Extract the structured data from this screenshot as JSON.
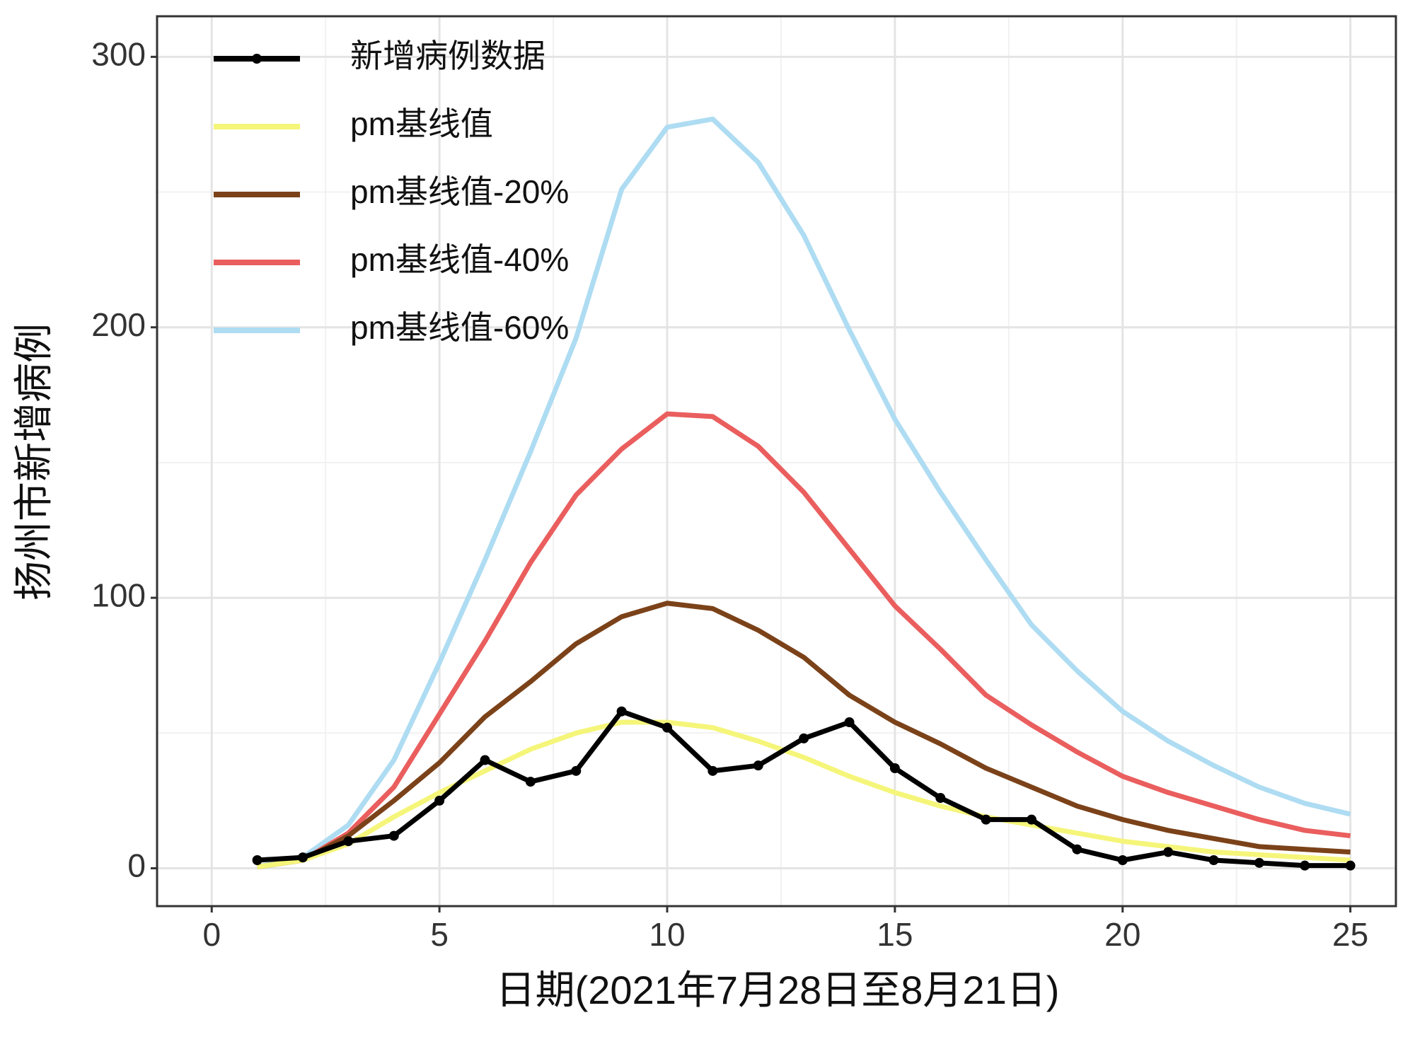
{
  "chart_data": {
    "type": "line",
    "x_label": "日期(2021年7月28日至8月21日)",
    "y_label": "扬州市新增病例",
    "x": [
      1,
      2,
      3,
      4,
      5,
      6,
      7,
      8,
      9,
      10,
      11,
      12,
      13,
      14,
      15,
      16,
      17,
      18,
      19,
      20,
      21,
      22,
      23,
      24,
      25
    ],
    "series": [
      {
        "name": "新增病例数据",
        "color": "#000000",
        "markers": true,
        "values": [
          3,
          4,
          10,
          12,
          25,
          40,
          32,
          36,
          58,
          52,
          36,
          38,
          48,
          54,
          37,
          26,
          18,
          18,
          7,
          3,
          6,
          3,
          2,
          1,
          1
        ]
      },
      {
        "name": "pm基线值",
        "color": "#f5f57a",
        "values": [
          0.5,
          3,
          9,
          19,
          28,
          36,
          44,
          50,
          54,
          54,
          52,
          47,
          41,
          34,
          28,
          23,
          19,
          16,
          13,
          10,
          8,
          6,
          5,
          4,
          3
        ]
      },
      {
        "name": "pm基线值-20%",
        "color": "#7b4219",
        "values": [
          0.5,
          3,
          12,
          25,
          39,
          56,
          69,
          83,
          93,
          98,
          96,
          88,
          78,
          64,
          54,
          46,
          37,
          30,
          23,
          18,
          14,
          11,
          8,
          7,
          6
        ]
      },
      {
        "name": "pm基线值-40%",
        "color": "#ea5e5e",
        "values": [
          0.5,
          3,
          13,
          30,
          57,
          84,
          113,
          138,
          155,
          168,
          167,
          156,
          139,
          118,
          97,
          81,
          64,
          53,
          43,
          34,
          28,
          23,
          18,
          14,
          12
        ]
      },
      {
        "name": "pm基线值-60%",
        "color": "#aedcf2",
        "values": [
          0.5,
          4,
          16,
          40,
          76,
          114,
          154,
          196,
          251,
          274,
          277,
          261,
          234,
          199,
          166,
          139,
          114,
          90,
          73,
          58,
          47,
          38,
          30,
          24,
          20
        ]
      }
    ],
    "xlim": [
      -1.2,
      26
    ],
    "xticks": [
      0,
      5,
      10,
      15,
      20,
      25
    ],
    "ylim": [
      -14,
      315
    ],
    "yticks": [
      0,
      100,
      200,
      300
    ],
    "grid": true,
    "legend": "top-left"
  }
}
